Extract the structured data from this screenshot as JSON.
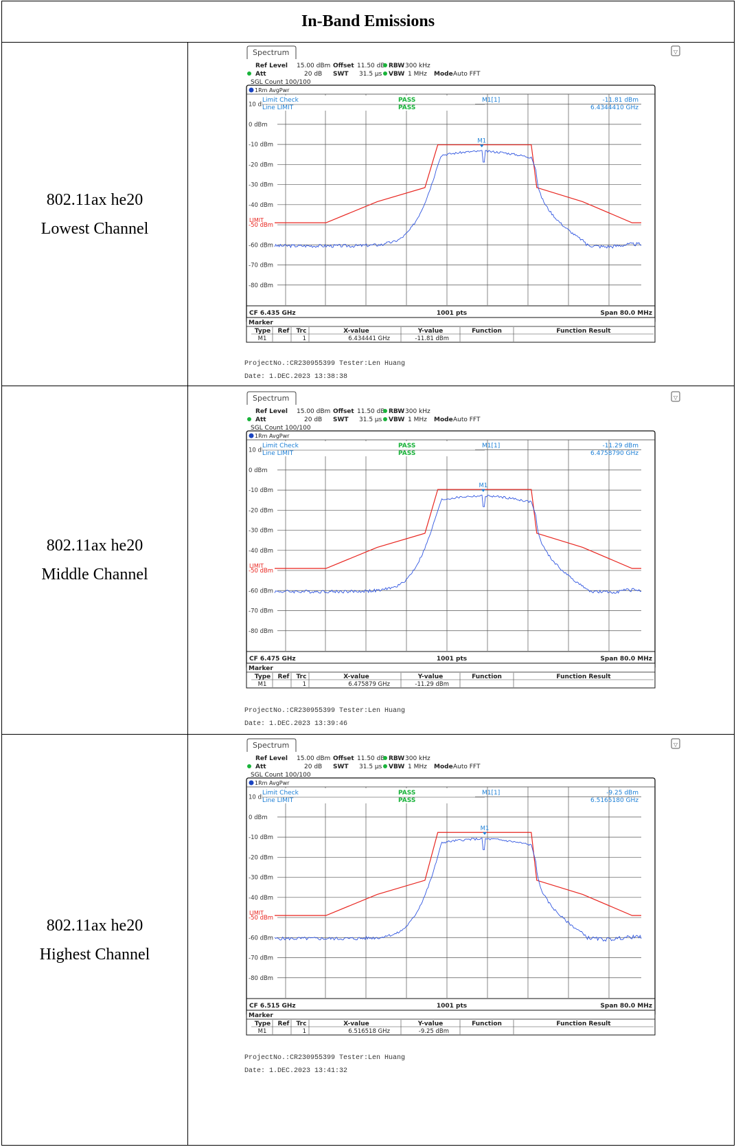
{
  "title": "In-Band Emissions",
  "common": {
    "tab": "Spectrum",
    "ref_level_label": "Ref Level",
    "ref_level": "15.00 dBm",
    "offset_label": "Offset",
    "offset": "11.50 dB",
    "rbw_label": "RBW",
    "rbw": "300 kHz",
    "att_label": "Att",
    "att": "20 dB",
    "swt_label": "SWT",
    "swt": "31.5 µs",
    "vbw_label": "VBW",
    "vbw": "1 MHz",
    "mode_label": "Mode",
    "mode": "Auto FFT",
    "sgl": "SGL Count 100/100",
    "trace": "1Rm AvgPwr",
    "limit_check": "Limit Check",
    "line_limit": "Line LIMIT",
    "pass1": "PASS",
    "pass2": "PASS",
    "marker_id": "M1[1]",
    "m1_label": "M1",
    "limit_label": "LIMIT",
    "points": "1001 pts",
    "span": "Span 80.0 MHz",
    "marker_title": "Marker",
    "col_type": "Type",
    "col_ref": "Ref",
    "col_trc": "Trc",
    "col_x": "X-value",
    "col_y": "Y-value",
    "col_func": "Function",
    "col_result": "Function Result",
    "row_type": "M1",
    "row_trc": "1",
    "y_ticks": [
      "10 dBm",
      "0 dBm",
      "-10 dBm",
      "-20 dBm",
      "-30 dBm",
      "-40 dBm",
      "-50 dBm",
      "-60 dBm",
      "-70 dBm",
      "-80 dBm"
    ],
    "y_range_dbm": [
      -90,
      15
    ],
    "x_span_mhz": 80,
    "project": "ProjectNo.:CR230955399",
    "tester": "Tester:Len Huang",
    "colors": {
      "limit": "#e8251f",
      "trace": "#2f55e0",
      "header_text": "#1c7fd6",
      "pass": "#19b33a"
    }
  },
  "rows": [
    {
      "label_line1": "802.11ax he20",
      "label_line2": "Lowest Channel",
      "marker_value": "-11.81 dBm",
      "marker_freq": "6.4344410 GHz",
      "cf": "CF 6.435 GHz",
      "x_value": "6.434441 GHz",
      "y_value": "-11.81 dBm",
      "date": "Date: 1.DEC.2023  13:38:38"
    },
    {
      "label_line1": "802.11ax he20",
      "label_line2": "Middle Channel",
      "marker_value": "-11.29 dBm",
      "marker_freq": "6.4758790 GHz",
      "cf": "CF 6.475 GHz",
      "x_value": "6.475879 GHz",
      "y_value": "-11.29 dBm",
      "date": "Date: 1.DEC.2023  13:39:46"
    },
    {
      "label_line1": "802.11ax he20",
      "label_line2": "Highest Channel",
      "marker_value": "-9.25 dBm",
      "marker_freq": "6.5165180 GHz",
      "cf": "CF 6.515 GHz",
      "x_value": "6.516518 GHz",
      "y_value": "-9.25 dBm",
      "date": "Date: 1.DEC.2023  13:41:32"
    }
  ]
}
